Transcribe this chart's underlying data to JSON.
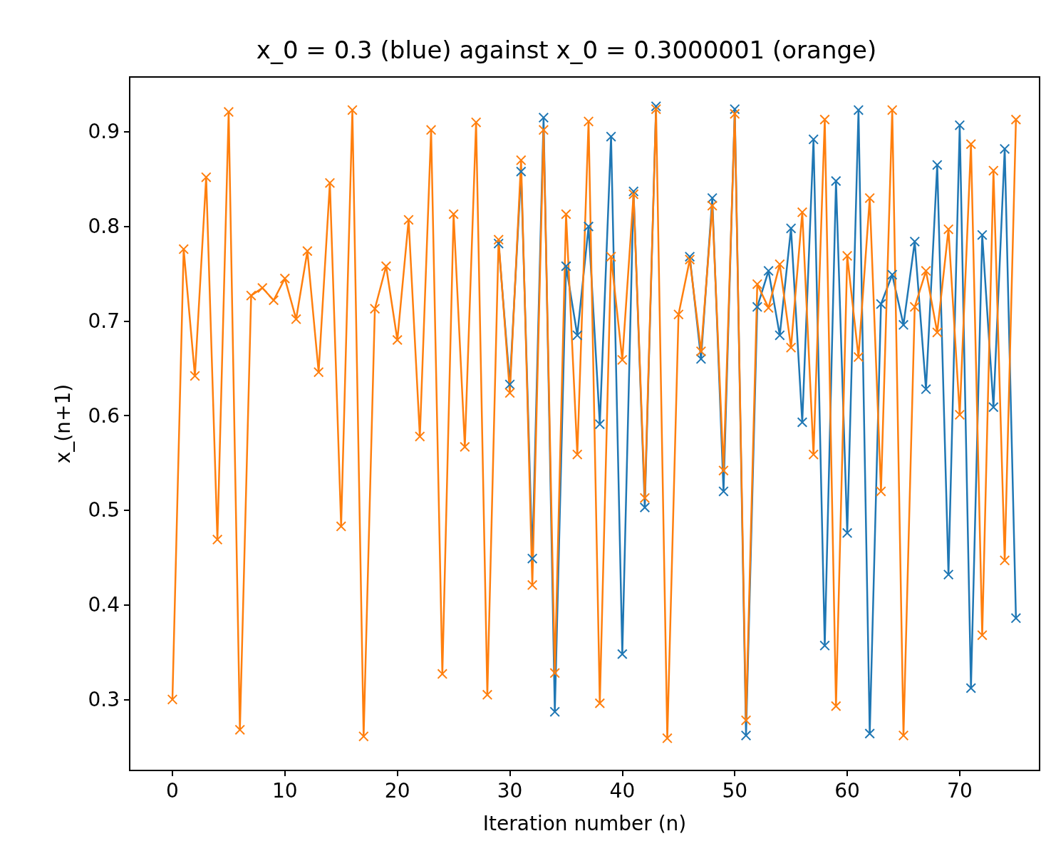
{
  "chart_data": {
    "type": "line",
    "title": "x_0 = 0.3 (blue) against x_0 = 0.3000001 (orange)",
    "xlabel": "Iteration number (n)",
    "ylabel": "x_(n+1)",
    "x": [
      0,
      1,
      2,
      3,
      4,
      5,
      6,
      7,
      8,
      9,
      10,
      11,
      12,
      13,
      14,
      15,
      16,
      17,
      18,
      19,
      20,
      21,
      22,
      23,
      24,
      25,
      26,
      27,
      28,
      29,
      30,
      31,
      32,
      33,
      34,
      35,
      36,
      37,
      38,
      39,
      40,
      41,
      42,
      43,
      44,
      45,
      46,
      47,
      48,
      49,
      50,
      51,
      52,
      53,
      54,
      55,
      56,
      57,
      58,
      59,
      60,
      61,
      62,
      63,
      64,
      65,
      66,
      67,
      68,
      69,
      70,
      71,
      72,
      73,
      74,
      75
    ],
    "series": [
      {
        "color": "#1f77b4",
        "values": [
          null,
          null,
          null,
          null,
          null,
          null,
          null,
          null,
          null,
          null,
          null,
          null,
          null,
          null,
          null,
          null,
          null,
          null,
          null,
          null,
          null,
          null,
          null,
          null,
          null,
          null,
          null,
          null,
          null,
          0.782,
          0.633,
          0.858,
          0.449,
          0.915,
          0.287,
          0.758,
          0.685,
          0.8,
          0.591,
          0.895,
          0.348,
          0.837,
          0.503,
          0.927,
          null,
          null,
          0.768,
          0.66,
          0.83,
          0.52,
          0.924,
          0.262,
          0.715,
          0.753,
          0.685,
          0.798,
          0.593,
          0.892,
          0.357,
          0.848,
          0.476,
          0.923,
          0.264,
          0.718,
          0.749,
          0.696,
          0.784,
          0.628,
          0.865,
          0.432,
          0.907,
          0.312,
          0.791,
          0.609,
          0.882,
          0.386
        ]
      },
      {
        "color": "#ff7f0e",
        "values": [
          0.3,
          0.776,
          0.642,
          0.852,
          0.469,
          0.921,
          0.268,
          0.727,
          0.735,
          0.722,
          0.745,
          0.702,
          0.774,
          0.646,
          0.846,
          0.483,
          0.923,
          0.261,
          0.713,
          0.758,
          0.68,
          0.807,
          0.578,
          0.902,
          0.327,
          0.813,
          0.567,
          0.91,
          0.305,
          0.786,
          0.624,
          0.87,
          0.421,
          0.902,
          0.328,
          0.813,
          0.559,
          0.911,
          0.296,
          0.768,
          0.659,
          0.834,
          0.513,
          0.924,
          0.259,
          0.707,
          0.765,
          0.668,
          0.822,
          0.542,
          0.919,
          0.278,
          0.739,
          0.714,
          0.76,
          0.672,
          0.815,
          0.559,
          0.913,
          0.293,
          0.769,
          0.662,
          0.83,
          0.52,
          0.923,
          0.262,
          0.715,
          0.753,
          0.688,
          0.797,
          0.601,
          0.887,
          0.368,
          0.859,
          0.447,
          0.913
        ]
      }
    ],
    "xlim": [
      -3.8,
      77.1
    ],
    "xticks": [
      0,
      10,
      20,
      30,
      40,
      50,
      60,
      70
    ],
    "ylim": [
      0.225,
      0.958
    ],
    "yticks": [
      0.3,
      0.4,
      0.5,
      0.6,
      0.7,
      0.8,
      0.9
    ],
    "grid": false,
    "marker": "cross",
    "line_style": "solid"
  }
}
